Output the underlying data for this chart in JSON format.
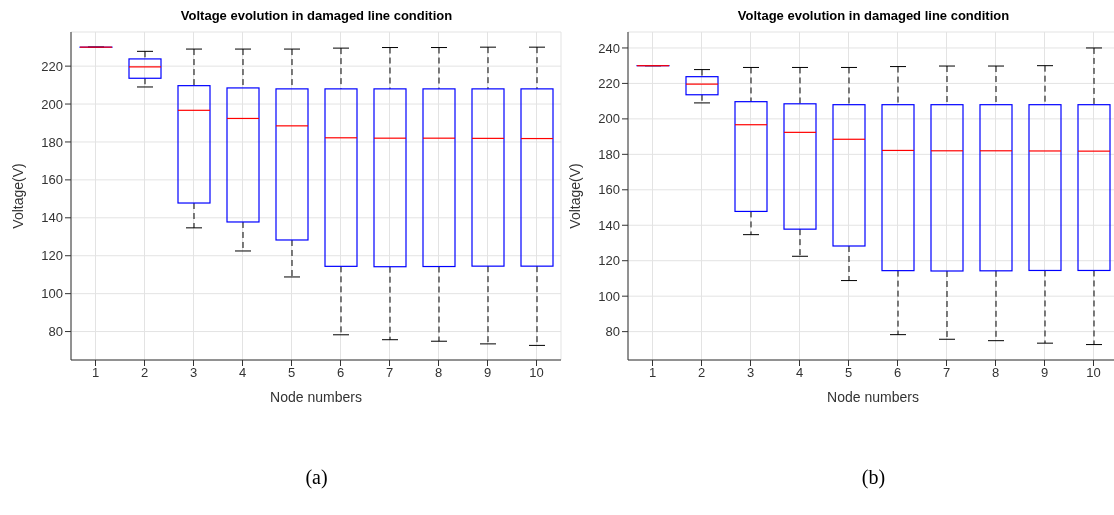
{
  "chart_data": [
    {
      "type": "box",
      "title": "Voltage evolution in damaged line condition",
      "xlabel": "Node numbers",
      "ylabel": "Voltage(V)",
      "categories": [
        "1",
        "2",
        "3",
        "4",
        "5",
        "6",
        "7",
        "8",
        "9",
        "10"
      ],
      "boxes": [
        {
          "low": 230,
          "q1": 230,
          "median": 230,
          "q3": 230,
          "high": 230
        },
        {
          "low": 209,
          "q1": 213.6,
          "median": 219.6,
          "q3": 223.8,
          "high": 227.8
        },
        {
          "low": 134.7,
          "q1": 147.8,
          "median": 196.7,
          "q3": 209.7,
          "high": 229
        },
        {
          "low": 122.5,
          "q1": 137.8,
          "median": 192.4,
          "q3": 208.5,
          "high": 229
        },
        {
          "low": 108.8,
          "q1": 128.3,
          "median": 188.5,
          "q3": 208,
          "high": 229
        },
        {
          "low": 78.3,
          "q1": 114.4,
          "median": 182.2,
          "q3": 208,
          "high": 229.5
        },
        {
          "low": 75.7,
          "q1": 114.2,
          "median": 182,
          "q3": 208,
          "high": 229.8
        },
        {
          "low": 74.9,
          "q1": 114.3,
          "median": 182,
          "q3": 208,
          "high": 229.8
        },
        {
          "low": 73.5,
          "q1": 114.5,
          "median": 181.9,
          "q3": 208,
          "high": 230
        },
        {
          "low": 72.7,
          "q1": 114.5,
          "median": 181.8,
          "q3": 208,
          "high": 230
        }
      ],
      "color": "#0000ff",
      "ylim": [
        65,
        238
      ],
      "yticks": [
        80,
        100,
        120,
        140,
        160,
        180,
        200,
        220
      ],
      "grid": true,
      "annotations": [
        "(a)"
      ]
    },
    {
      "type": "box",
      "title": "Voltage evolution in damaged line condition",
      "xlabel": "Node numbers",
      "ylabel": "Voltage(V)",
      "categories": [
        "1",
        "2",
        "3",
        "4",
        "5",
        "6",
        "7",
        "8",
        "9",
        "10"
      ],
      "boxes": [
        {
          "low": 230,
          "q1": 230,
          "median": 230,
          "q3": 230,
          "high": 230
        },
        {
          "low": 209,
          "q1": 213.6,
          "median": 219.6,
          "q3": 223.8,
          "high": 227.8
        },
        {
          "low": 134.7,
          "q1": 147.8,
          "median": 196.7,
          "q3": 209.7,
          "high": 229
        },
        {
          "low": 122.5,
          "q1": 137.8,
          "median": 192.4,
          "q3": 208.5,
          "high": 229
        },
        {
          "low": 108.8,
          "q1": 128.3,
          "median": 188.5,
          "q3": 208,
          "high": 229
        },
        {
          "low": 78.3,
          "q1": 114.4,
          "median": 182.2,
          "q3": 208,
          "high": 229.5
        },
        {
          "low": 75.7,
          "q1": 114.2,
          "median": 182,
          "q3": 208,
          "high": 229.8
        },
        {
          "low": 74.9,
          "q1": 114.3,
          "median": 182,
          "q3": 208,
          "high": 229.8
        },
        {
          "low": 73.5,
          "q1": 114.5,
          "median": 181.9,
          "q3": 208,
          "high": 230
        },
        {
          "low": 72.7,
          "q1": 114.5,
          "median": 181.8,
          "q3": 208,
          "high": 240
        }
      ],
      "color": "#0000ff",
      "ylim": [
        64,
        249
      ],
      "yticks": [
        80,
        100,
        120,
        140,
        160,
        180,
        200,
        220,
        240
      ],
      "grid": true,
      "annotations": [
        "(b)"
      ]
    }
  ]
}
